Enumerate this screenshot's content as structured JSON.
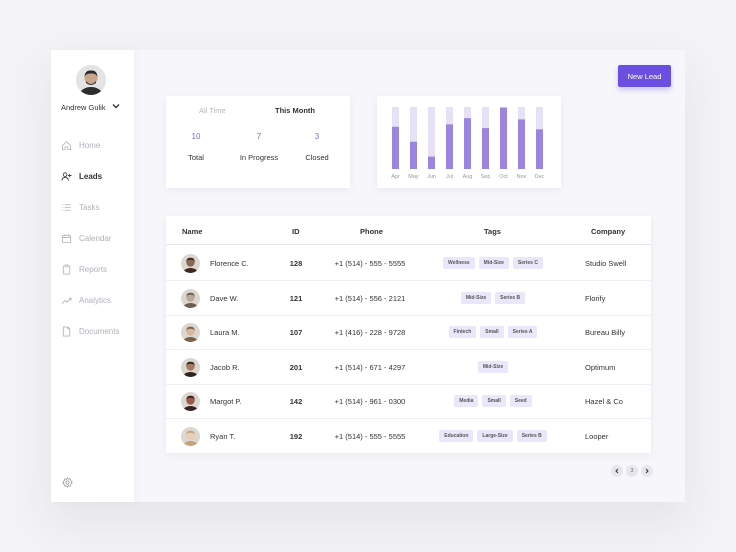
{
  "user": {
    "name": "Andrew Gulik"
  },
  "sidebar": {
    "items": [
      {
        "label": "Home",
        "icon": "home-icon",
        "active": false
      },
      {
        "label": "Leads",
        "icon": "user-plus-icon",
        "active": true
      },
      {
        "label": "Tasks",
        "icon": "list-icon",
        "active": false
      },
      {
        "label": "Calendar",
        "icon": "calendar-icon",
        "active": false
      },
      {
        "label": "Reports",
        "icon": "clipboard-icon",
        "active": false
      },
      {
        "label": "Analytics",
        "icon": "trend-icon",
        "active": false
      },
      {
        "label": "Documents",
        "icon": "document-icon",
        "active": false
      }
    ]
  },
  "toolbar": {
    "new_lead_label": "New Lead"
  },
  "stats": {
    "tabs": [
      "All Time",
      "This Month"
    ],
    "active_tab": "This Month",
    "items": [
      {
        "value": "10",
        "label": "Total"
      },
      {
        "value": "7",
        "label": "In Progress"
      },
      {
        "value": "3",
        "label": "Closed"
      }
    ]
  },
  "chart_data": {
    "type": "bar",
    "categories": [
      "Apr",
      "May",
      "Jun",
      "Jul",
      "Aug",
      "Sep",
      "Oct",
      "Nov",
      "Dec"
    ],
    "values": [
      0.68,
      0.44,
      0.2,
      0.72,
      0.82,
      0.66,
      0.99,
      0.8,
      0.64
    ],
    "background_values": [
      1,
      1,
      1,
      1,
      1,
      1,
      1,
      1,
      1
    ],
    "title": "",
    "colors": {
      "bar": "#9c85e0",
      "track": "#e6e1f7"
    }
  },
  "table": {
    "columns": [
      "Name",
      "ID",
      "Phone",
      "Tags",
      "Company"
    ],
    "rows": [
      {
        "name": "Florence C.",
        "id": "128",
        "phone": "+1 (514) - 555 - 5555",
        "tags": [
          "Wellness",
          "Mid-Size",
          "Series C"
        ],
        "company": "Studio Swell"
      },
      {
        "name": "Dave W.",
        "id": "121",
        "phone": "+1 (514) - 556 - 2121",
        "tags": [
          "Mid-Size",
          "Series B"
        ],
        "company": "Florify"
      },
      {
        "name": "Laura M.",
        "id": "107",
        "phone": "+1 (416) - 228 - 9728",
        "tags": [
          "Fintech",
          "Small",
          "Series A"
        ],
        "company": "Bureau Billy"
      },
      {
        "name": "Jacob R.",
        "id": "201",
        "phone": "+1 (514) - 671 - 4297",
        "tags": [
          "Mid-Size"
        ],
        "company": "Optimum"
      },
      {
        "name": "Margot P.",
        "id": "142",
        "phone": "+1 (514) - 961 - 0300",
        "tags": [
          "Media",
          "Small",
          "Seed"
        ],
        "company": "Hazel & Co"
      },
      {
        "name": "Ryan T.",
        "id": "192",
        "phone": "+1 (514) - 555 - 5555",
        "tags": [
          "Education",
          "Large-Size",
          "Series B"
        ],
        "company": "Looper"
      }
    ]
  },
  "pagination": {
    "current_page": "3"
  },
  "colors": {
    "accent": "#6b4fe0",
    "stat_value": "#7f6cd6"
  }
}
